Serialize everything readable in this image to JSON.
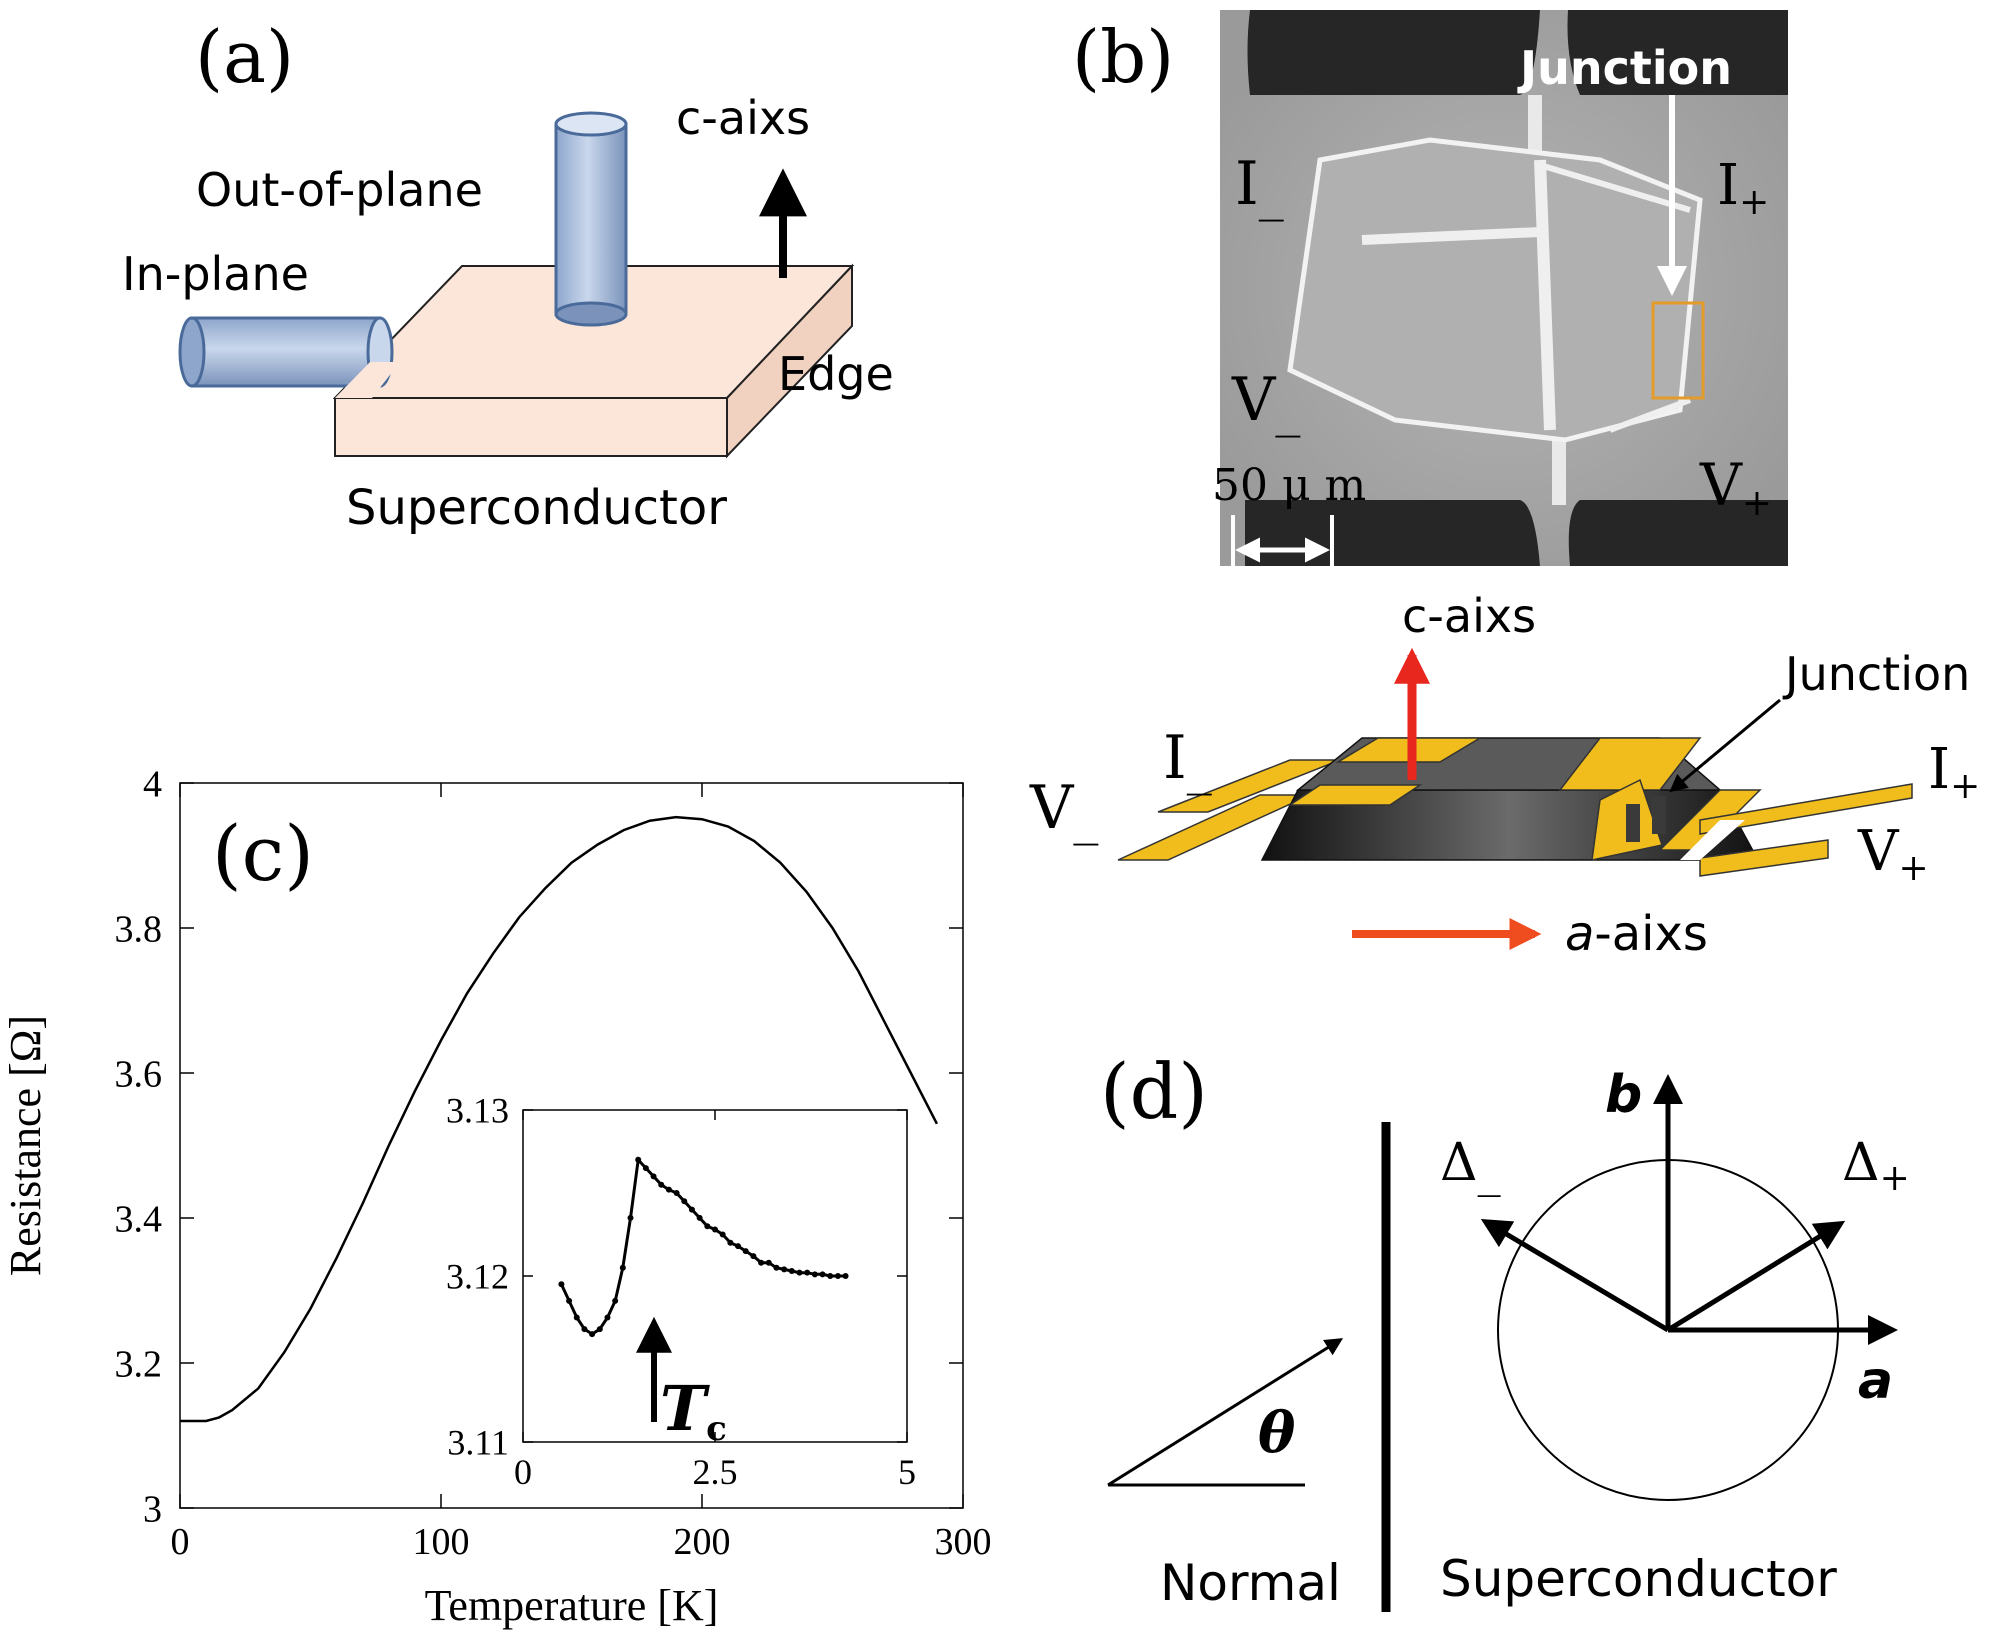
{
  "panel_a": {
    "label": "(a)",
    "c_axis": "c-aixs",
    "out_of_plane": "Out-of-plane",
    "in_plane": "In-plane",
    "edge": "Edge",
    "superconductor": "Superconductor"
  },
  "panel_b": {
    "label": "(b)",
    "junction": "Junction",
    "i_minus": "I",
    "i_minus_sub": "_",
    "i_plus": "I",
    "i_plus_sub": "+",
    "v_minus": "V",
    "v_minus_sub": "_",
    "v_plus": "V",
    "v_plus_sub": "+",
    "scale": "50 μ m"
  },
  "schematic": {
    "c_axis": "c-aixs",
    "a_axis_italic": "a",
    "a_axis_rest": "-aixs",
    "junction": "Junction",
    "i_minus": "I",
    "i_minus_sub": "_",
    "i_plus": "I",
    "i_plus_sub": "+",
    "v_minus": "V",
    "v_minus_sub": "_",
    "v_plus": "V",
    "v_plus_sub": "+"
  },
  "panel_c": {
    "label": "(c)",
    "tc_main": "T",
    "tc_sub": "c"
  },
  "panel_d": {
    "label": "(d)",
    "b": "b",
    "a": "a",
    "delta_minus": "Δ",
    "delta_minus_sub": "_",
    "delta_plus": "Δ",
    "delta_plus_sub": "+",
    "theta": "θ",
    "normal": "Normal",
    "superconductor": "Superconductor"
  },
  "colors": {
    "cylinder_fill": "#b8c9e3",
    "cylinder_stroke": "#4a6a9a",
    "slab_fill": "#fbe6d9",
    "gold": "#f0bd1c",
    "red_arrow": "#e8271e",
    "orange_arrow": "#ef4c20",
    "sem_bg": "#a9a9a9"
  },
  "chart_data": [
    {
      "type": "line",
      "title": "",
      "xlabel": "Temperature [K]",
      "ylabel": "Resistance [Ω]",
      "xlim": [
        0,
        300
      ],
      "ylim": [
        3,
        4
      ],
      "xticks": [
        0,
        100,
        200,
        300
      ],
      "yticks": [
        3,
        3.2,
        3.4,
        3.6,
        3.8,
        4
      ],
      "xtick_labels": [
        "0",
        "100",
        "200",
        "300"
      ],
      "ytick_labels": [
        "3",
        "3.2",
        "3.4",
        "3.6",
        "3.8",
        "4"
      ],
      "series": [
        {
          "x": [
            0,
            5,
            10,
            15,
            20,
            30,
            40,
            50,
            60,
            70,
            80,
            90,
            100,
            110,
            120,
            130,
            140,
            150,
            160,
            170,
            180,
            190,
            200,
            210,
            220,
            230,
            240,
            250,
            260,
            270,
            280,
            290
          ],
          "y": [
            3.12,
            3.12,
            3.12,
            3.125,
            3.135,
            3.165,
            3.215,
            3.275,
            3.345,
            3.42,
            3.5,
            3.575,
            3.645,
            3.71,
            3.765,
            3.815,
            3.855,
            3.89,
            3.915,
            3.935,
            3.948,
            3.953,
            3.95,
            3.94,
            3.92,
            3.89,
            3.85,
            3.8,
            3.74,
            3.67,
            3.6,
            3.53
          ]
        }
      ]
    },
    {
      "type": "scatter",
      "title": "",
      "xlabel": "",
      "ylabel": "",
      "xlim": [
        0,
        5
      ],
      "ylim": [
        3.11,
        3.13
      ],
      "xticks": [
        0,
        2.5,
        5
      ],
      "yticks": [
        3.11,
        3.12,
        3.13
      ],
      "xtick_labels": [
        "0",
        "2.5",
        "5"
      ],
      "ytick_labels": [
        "3.11",
        "3.12",
        "3.13"
      ],
      "series": [
        {
          "x": [
            0.5,
            0.6,
            0.7,
            0.8,
            0.9,
            1.0,
            1.1,
            1.2,
            1.3,
            1.4,
            1.5,
            1.6,
            1.7,
            1.8,
            1.9,
            2.0,
            2.1,
            2.2,
            2.3,
            2.4,
            2.5,
            2.6,
            2.7,
            2.8,
            2.9,
            3.0,
            3.1,
            3.2,
            3.3,
            3.4,
            3.5,
            3.6,
            3.7,
            3.8,
            3.9,
            4.0,
            4.1,
            4.2
          ],
          "y": [
            3.1195,
            3.1185,
            3.1175,
            3.1168,
            3.1165,
            3.1168,
            3.1175,
            3.1185,
            3.1205,
            3.1235,
            3.127,
            3.1265,
            3.126,
            3.1255,
            3.1252,
            3.125,
            3.1245,
            3.124,
            3.1235,
            3.123,
            3.1228,
            3.1225,
            3.122,
            3.1218,
            3.1215,
            3.1212,
            3.1208,
            3.1208,
            3.1205,
            3.1204,
            3.1203,
            3.1202,
            3.1202,
            3.1201,
            3.1201,
            3.12,
            3.12,
            3.12
          ]
        }
      ]
    }
  ]
}
